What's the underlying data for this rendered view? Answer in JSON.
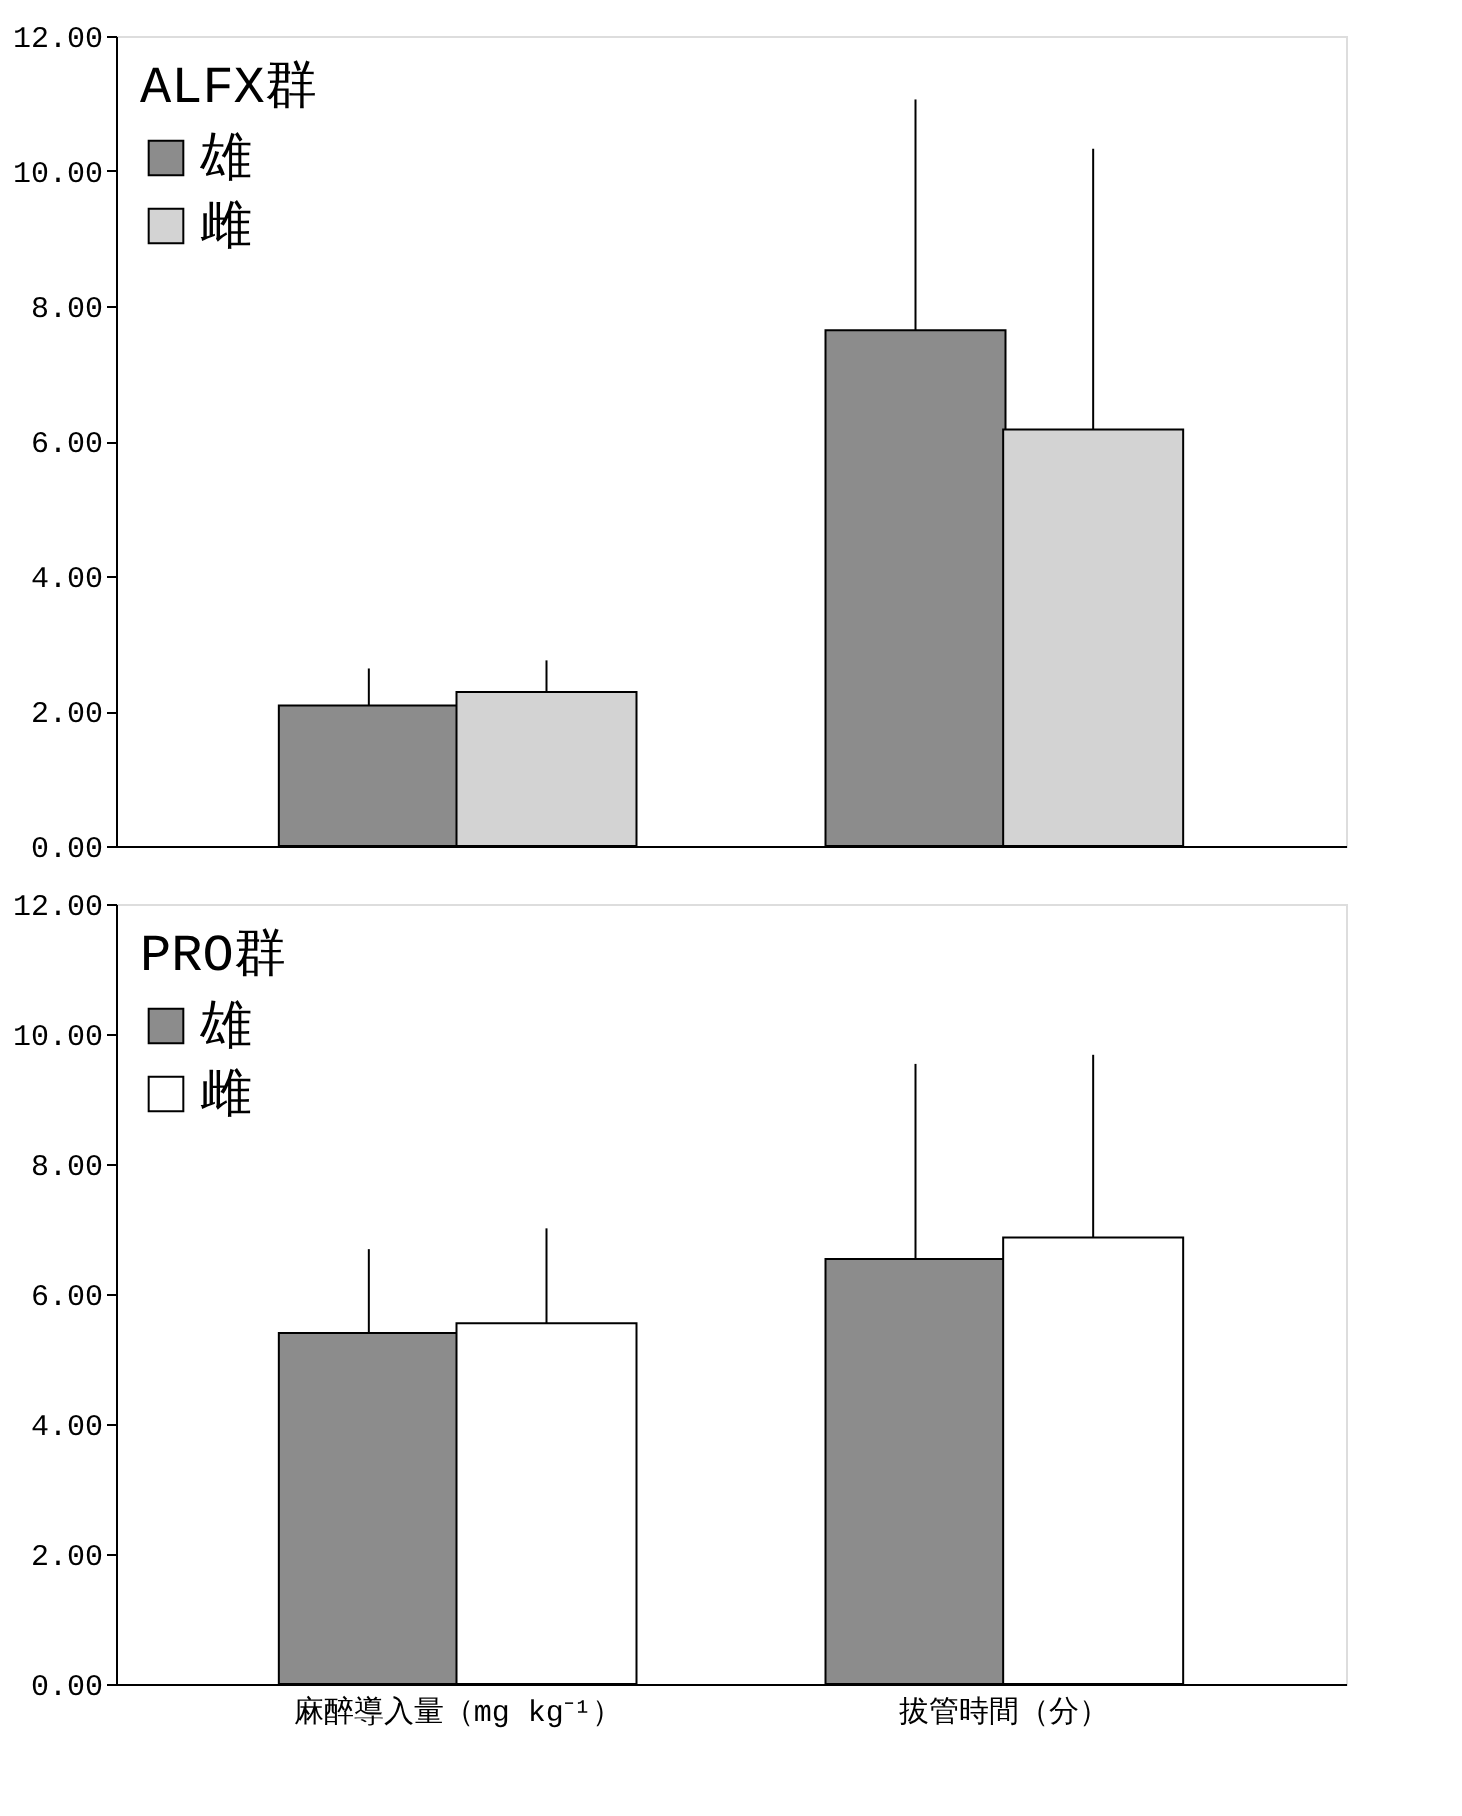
{
  "chart_data": [
    {
      "type": "bar",
      "categories": [
        null,
        null
      ],
      "legend_title": "ALFX群",
      "legend": "top left",
      "tick_labels": "y",
      "grid": false,
      "series": [
        {
          "name": "雄",
          "color": "#8c8c8c",
          "values": [
            2.08,
            7.64
          ],
          "errors": [
            [
              2.08,
              2.63
            ],
            [
              7.64,
              11.06
            ]
          ]
        },
        {
          "name": "雌",
          "color": "#d3d3d3",
          "values": [
            2.28,
            6.17
          ],
          "errors": [
            [
              2.28,
              2.75
            ],
            [
              6.17,
              10.33
            ]
          ]
        }
      ],
      "ylim": [
        0,
        12
      ],
      "yticks": [
        {
          "value": 0,
          "label": "0.00"
        },
        {
          "value": 2,
          "label": "2.00"
        },
        {
          "value": 4,
          "label": "4.00"
        },
        {
          "value": 6,
          "label": "6.00"
        },
        {
          "value": 8,
          "label": "8.00"
        },
        {
          "value": 10,
          "label": "10.00"
        },
        {
          "value": 12,
          "label": "12.00"
        }
      ]
    },
    {
      "type": "bar",
      "categories": [
        "麻醉導入量（mg kg⁻¹）",
        "拔管時間（分）"
      ],
      "legend_title": "PRO群",
      "legend": "top left",
      "grid": false,
      "series": [
        {
          "name": "雄",
          "color": "#8c8c8c",
          "values": [
            5.4,
            6.54
          ],
          "errors": [
            [
              5.4,
              6.69
            ],
            [
              6.54,
              9.54
            ]
          ]
        },
        {
          "name": "雌",
          "color": "#ffffff",
          "values": [
            5.55,
            6.87
          ],
          "errors": [
            [
              5.55,
              7.01
            ],
            [
              6.87,
              9.68
            ]
          ]
        }
      ],
      "ylim": [
        0,
        12
      ],
      "yticks": [
        {
          "value": 0,
          "label": "0.00"
        },
        {
          "value": 2,
          "label": "2.00"
        },
        {
          "value": 4,
          "label": "4.00"
        },
        {
          "value": 6,
          "label": "6.00"
        },
        {
          "value": 8,
          "label": "8.00"
        },
        {
          "value": 10,
          "label": "10.00"
        },
        {
          "value": 12,
          "label": "12.00"
        }
      ]
    }
  ]
}
